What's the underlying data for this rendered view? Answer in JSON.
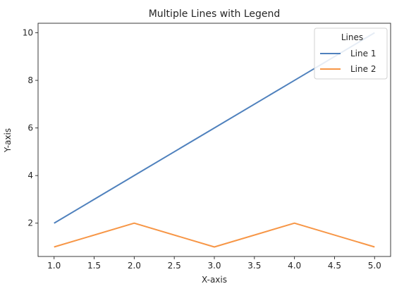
{
  "chart_data": {
    "type": "line",
    "title": "Multiple Lines with Legend",
    "xlabel": "X-axis",
    "ylabel": "Y-axis",
    "xlim": [
      0.8,
      5.2
    ],
    "ylim": [
      0.6,
      10.4
    ],
    "xticks": [
      1.0,
      1.5,
      2.0,
      2.5,
      3.0,
      3.5,
      4.0,
      4.5,
      5.0
    ],
    "xtick_labels": [
      "1.0",
      "1.5",
      "2.0",
      "2.5",
      "3.0",
      "3.5",
      "4.0",
      "4.5",
      "5.0"
    ],
    "yticks": [
      2,
      4,
      6,
      8,
      10
    ],
    "ytick_labels": [
      "2",
      "4",
      "6",
      "8",
      "10"
    ],
    "grid": false,
    "legend": {
      "title": "Lines",
      "placement": "top-right"
    },
    "series": [
      {
        "name": "Line 1",
        "color": "#4f81bd",
        "x": [
          1,
          2,
          3,
          4,
          5
        ],
        "y": [
          2,
          4,
          6,
          8,
          10
        ]
      },
      {
        "name": "Line 2",
        "color": "#f79646",
        "x": [
          1,
          2,
          3,
          4,
          5
        ],
        "y": [
          1,
          2,
          1,
          2,
          1
        ]
      }
    ]
  }
}
